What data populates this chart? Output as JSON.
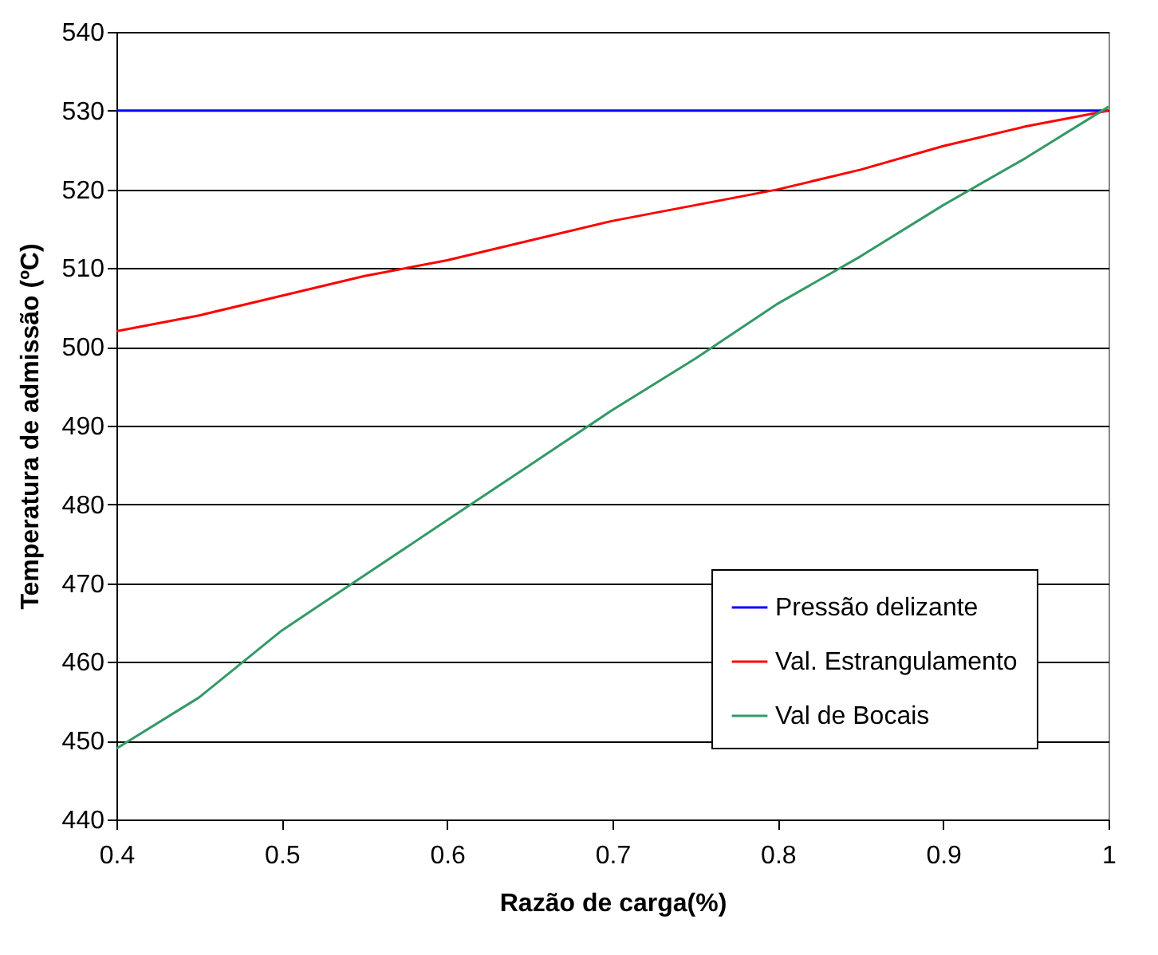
{
  "chart_data": {
    "type": "line",
    "xlabel": "Razão de carga(%)",
    "ylabel": "Temperatura de admissão (ºC)",
    "x": [
      0.4,
      0.45,
      0.5,
      0.55,
      0.6,
      0.65,
      0.7,
      0.75,
      0.8,
      0.85,
      0.9,
      0.95,
      1.0
    ],
    "series": [
      {
        "name": "Pressão delizante",
        "color": "#0000ff",
        "values": [
          530,
          530,
          530,
          530,
          530,
          530,
          530,
          530,
          530,
          530,
          530,
          530,
          530
        ]
      },
      {
        "name": "Val. Estrangulamento",
        "color": "#ff0000",
        "values": [
          502,
          504,
          506.5,
          509,
          511,
          513.5,
          516,
          518,
          520,
          522.5,
          525.5,
          528,
          530
        ]
      },
      {
        "name": "Val de Bocais",
        "color": "#339966",
        "values": [
          449,
          455.5,
          464,
          471,
          478,
          485,
          492,
          498.5,
          505.5,
          511.5,
          518,
          524,
          530.5
        ]
      }
    ],
    "xlim": [
      0.4,
      1
    ],
    "xticks": [
      0.4,
      0.5,
      0.6,
      0.7,
      0.8,
      0.9,
      1
    ],
    "ylim": [
      440,
      540
    ],
    "yticks": [
      440,
      450,
      460,
      470,
      480,
      490,
      500,
      510,
      520,
      530,
      540
    ],
    "grid": "y",
    "legend": "bottom right",
    "marker": "none",
    "line_style": "solid"
  }
}
